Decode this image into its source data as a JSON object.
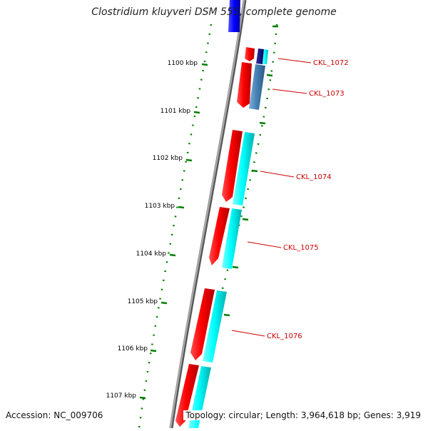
{
  "title": "Clostridium kluyveri DSM 555, complete genome",
  "footer": {
    "accession": "Accession: NC_009706",
    "summary": "Topology: circular; Length: 3,964,618 bp; Genes: 3,919"
  },
  "ticks": [
    {
      "label": "1100 kbp"
    },
    {
      "label": "1101 kbp"
    },
    {
      "label": "1102 kbp"
    },
    {
      "label": "1103 kbp"
    },
    {
      "label": "1104 kbp"
    },
    {
      "label": "1105 kbp"
    },
    {
      "label": "1106 kbp"
    },
    {
      "label": "1107 kbp"
    }
  ],
  "genes": [
    {
      "label": "CKL_1072"
    },
    {
      "label": "CKL_1073"
    },
    {
      "label": "CKL_1074"
    },
    {
      "label": "CKL_1075"
    },
    {
      "label": "CKL_1076"
    }
  ],
  "colors": {
    "forward_gene": "#ff0000",
    "cds_cyan": "#00ffff",
    "cds_steel": "#4682b4",
    "top_block": "#0000ff",
    "backbone": "#808080",
    "tick_green": "#007f00",
    "label_red": "#cc0000"
  }
}
